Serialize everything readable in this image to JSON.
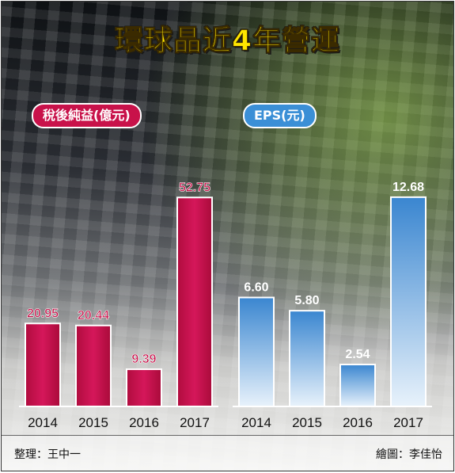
{
  "title": "環球晶近4年營運",
  "left_legend": "稅後純益(億元)",
  "right_legend": "EPS(元)",
  "credit_left": "整理：王中一",
  "credit_right": "繪圖：李佳怡",
  "colors": {
    "profit": "#c8124a",
    "eps": "#3b8fd6",
    "title": "#ffe600"
  },
  "chart_data": [
    {
      "type": "bar",
      "title": "稅後純益(億元)",
      "categories": [
        "2014",
        "2015",
        "2016",
        "2017"
      ],
      "values": [
        20.95,
        20.44,
        9.39,
        52.75
      ],
      "value_labels": [
        "20.95",
        "20.44",
        "9.39",
        "52.75"
      ],
      "ylim": [
        0,
        60
      ]
    },
    {
      "type": "bar",
      "title": "EPS(元)",
      "categories": [
        "2014",
        "2015",
        "2016",
        "2017"
      ],
      "values": [
        6.6,
        5.8,
        2.54,
        12.68
      ],
      "value_labels": [
        "6.60",
        "5.80",
        "2.54",
        "12.68"
      ],
      "ylim": [
        0,
        14.4
      ]
    }
  ]
}
